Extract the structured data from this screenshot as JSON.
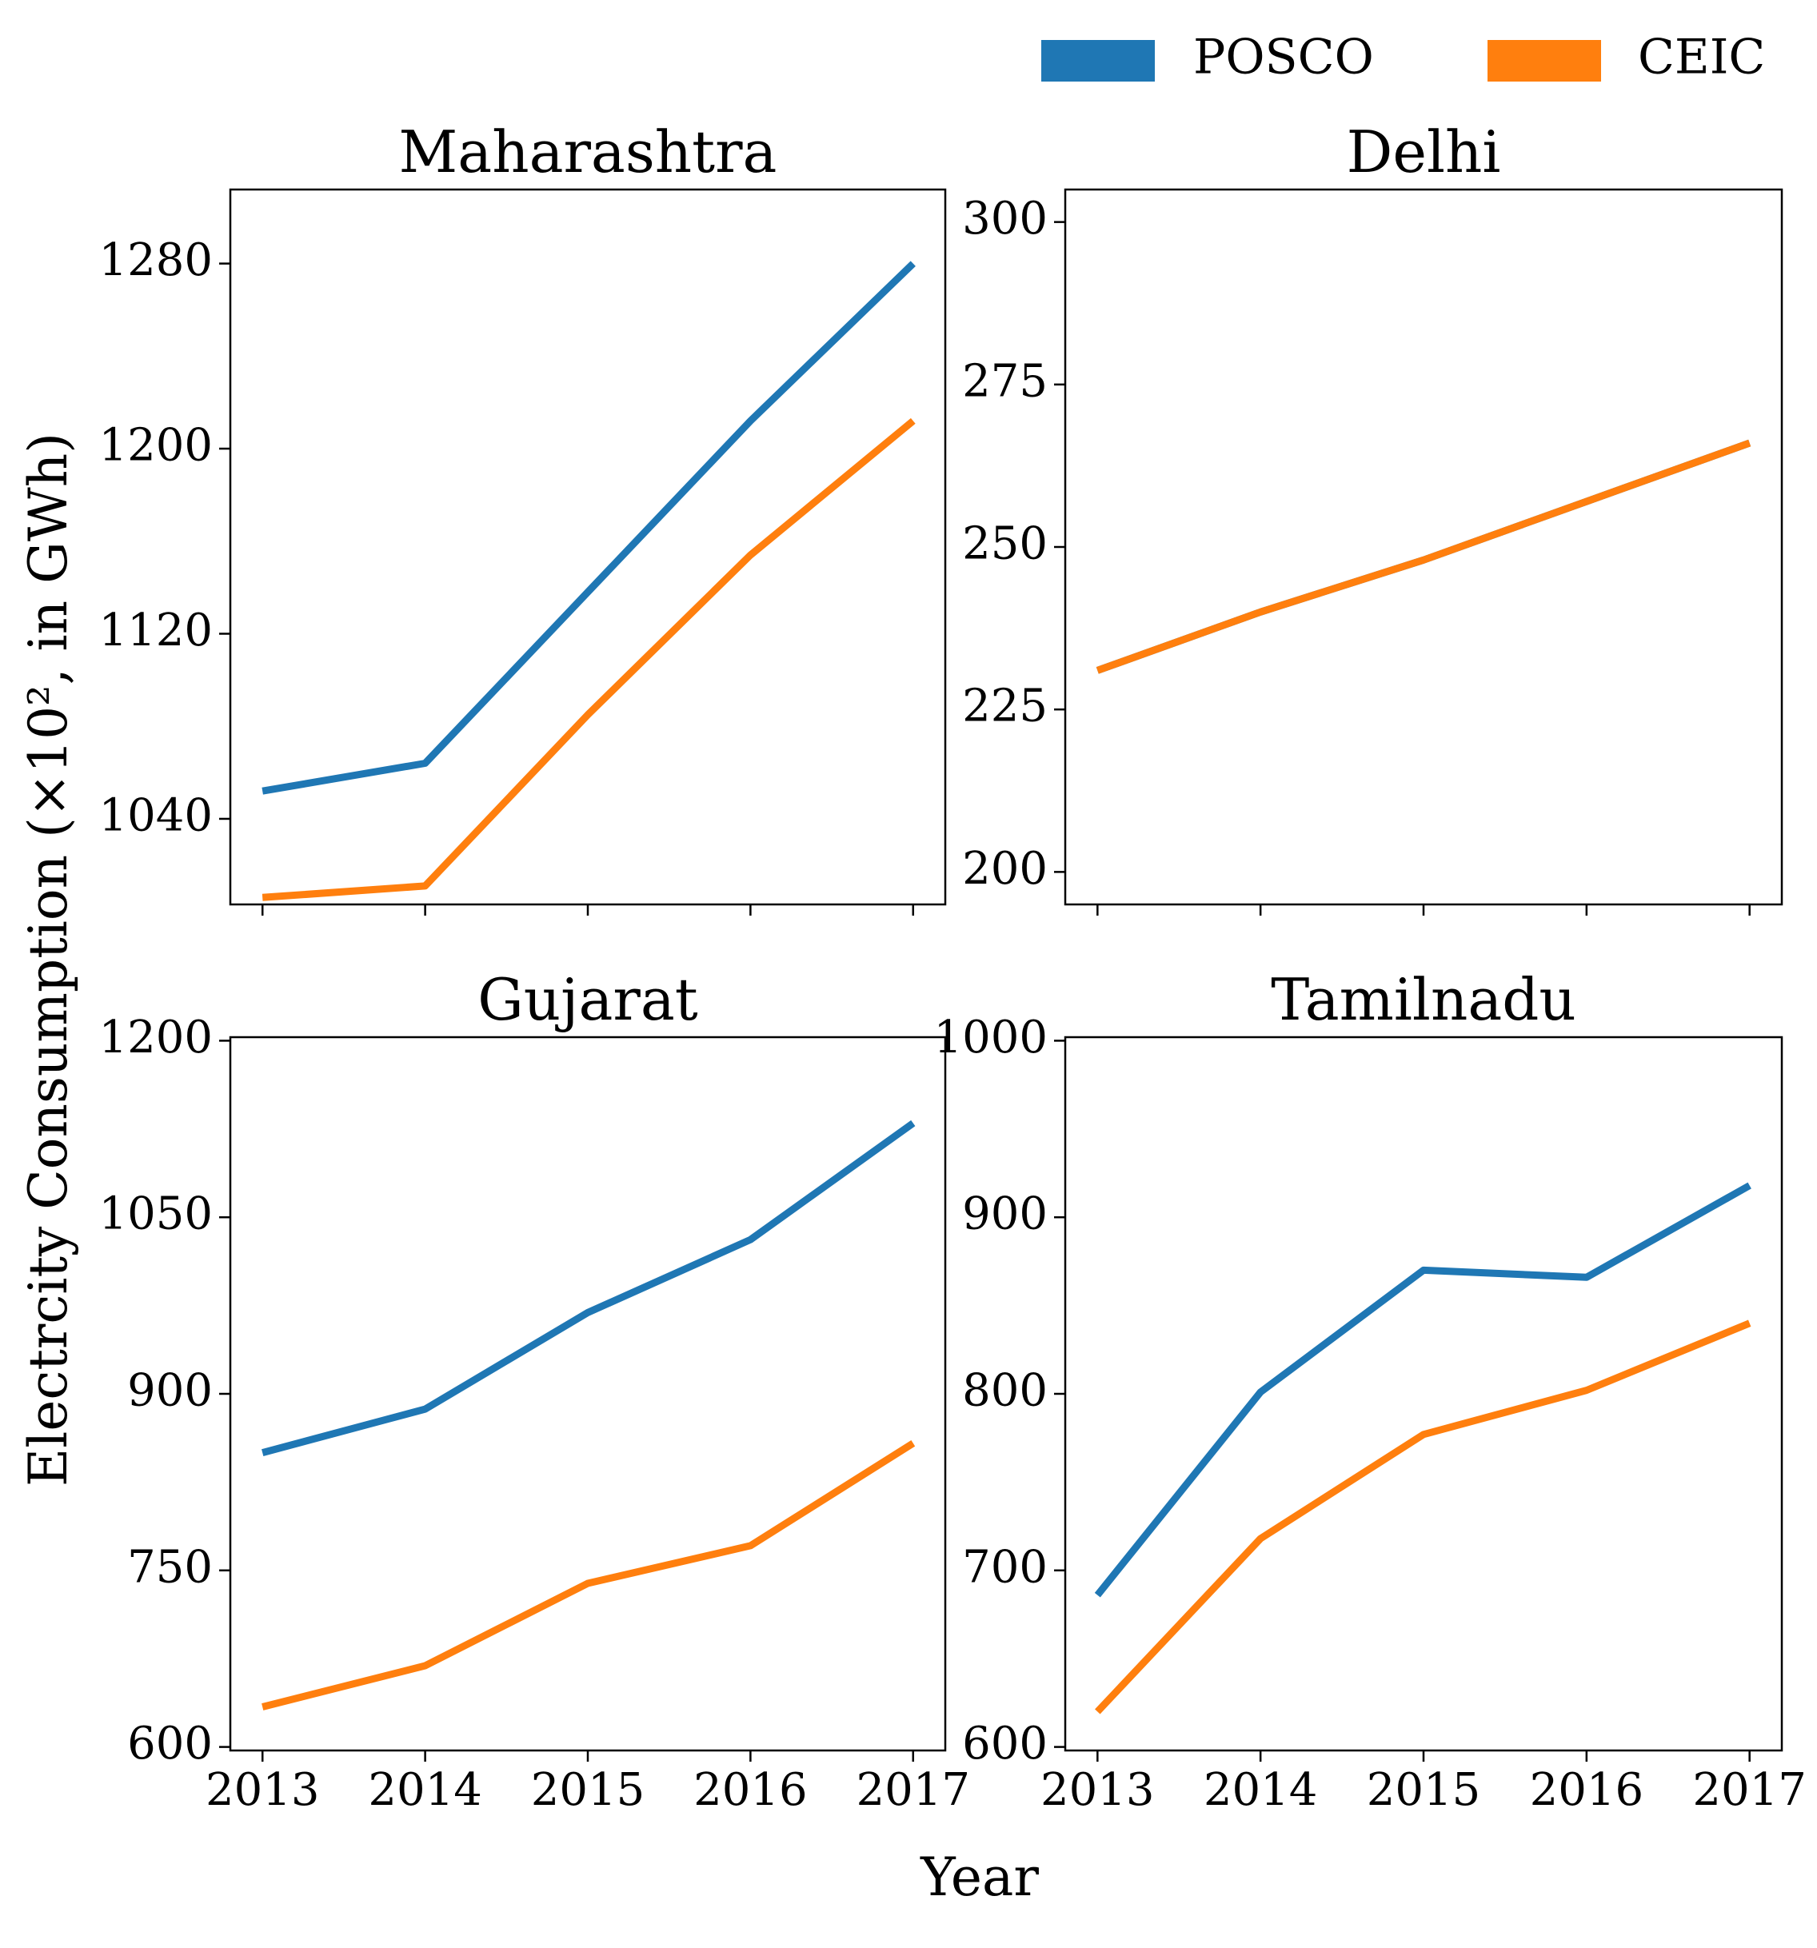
{
  "figure": {
    "ylabel": "Electrcity Consumption (×10², in GWh)",
    "xlabel": "Year"
  },
  "legend": {
    "placement": "top-right",
    "items": [
      {
        "label": "POSCO",
        "color": "#1f77b4"
      },
      {
        "label": "CEIC",
        "color": "#ff7f0e"
      }
    ]
  },
  "chart_data": [
    {
      "type": "line",
      "title": "Maharashtra",
      "x": [
        2013,
        2014,
        2015,
        2016,
        2017
      ],
      "xticks": [
        "2013",
        "2014",
        "2015",
        "2016",
        "2017"
      ],
      "yticks": [
        1040,
        1120,
        1200,
        1280
      ],
      "ylim": [
        1003,
        1312
      ],
      "grid": false,
      "series": [
        {
          "name": "POSCO",
          "color": "#1f77b4",
          "values": [
            1052,
            1064,
            1138,
            1212,
            1280
          ]
        },
        {
          "name": "CEIC",
          "color": "#ff7f0e",
          "values": [
            1006,
            1011,
            1085,
            1154,
            1212
          ]
        }
      ]
    },
    {
      "type": "line",
      "title": "Delhi",
      "x": [
        2013,
        2014,
        2015,
        2016,
        2017
      ],
      "xticks": [
        "2013",
        "2014",
        "2015",
        "2016",
        "2017"
      ],
      "yticks": [
        200,
        225,
        250,
        275,
        300
      ],
      "ylim": [
        195,
        305
      ],
      "grid": false,
      "series": [
        {
          "name": "POSCO",
          "color": "#1f77b4",
          "values": [
            231,
            240,
            248,
            257,
            266
          ]
        },
        {
          "name": "CEIC",
          "color": "#ff7f0e",
          "values": [
            231,
            240,
            248,
            257,
            266
          ]
        }
      ]
    },
    {
      "type": "line",
      "title": "Gujarat",
      "x": [
        2013,
        2014,
        2015,
        2016,
        2017
      ],
      "xticks": [
        "2013",
        "2014",
        "2015",
        "2016",
        "2017"
      ],
      "yticks": [
        600,
        750,
        900,
        1050,
        1200
      ],
      "ylim": [
        597,
        1203
      ],
      "grid": false,
      "series": [
        {
          "name": "POSCO",
          "color": "#1f77b4",
          "values": [
            850,
            887,
            969,
            1031,
            1130
          ]
        },
        {
          "name": "CEIC",
          "color": "#ff7f0e",
          "values": [
            634,
            669,
            739,
            771,
            858
          ]
        }
      ]
    },
    {
      "type": "line",
      "title": "Tamilnadu",
      "x": [
        2013,
        2014,
        2015,
        2016,
        2017
      ],
      "xticks": [
        "2013",
        "2014",
        "2015",
        "2016",
        "2017"
      ],
      "yticks": [
        600,
        700,
        800,
        900,
        1000
      ],
      "ylim": [
        598,
        1002
      ],
      "grid": false,
      "series": [
        {
          "name": "POSCO",
          "color": "#1f77b4",
          "values": [
            686,
            801,
            870,
            866,
            918
          ]
        },
        {
          "name": "CEIC",
          "color": "#ff7f0e",
          "values": [
            620,
            718,
            777,
            802,
            840
          ]
        }
      ]
    }
  ]
}
